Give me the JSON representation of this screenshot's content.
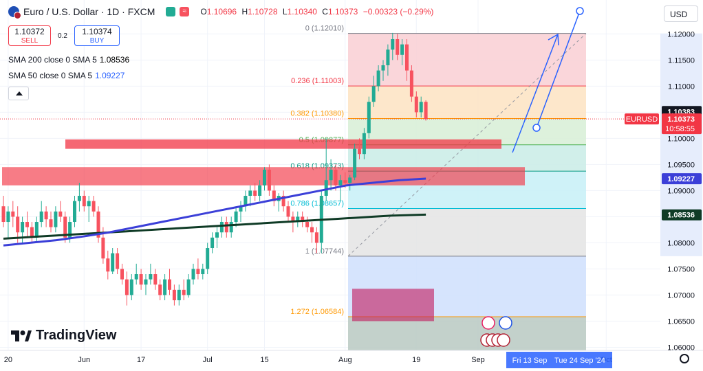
{
  "header": {
    "title": "Euro / U.S. Dollar · 1D · FXCM",
    "ohlc": [
      {
        "k": "O",
        "v": "1.10696"
      },
      {
        "k": "H",
        "v": "1.10728"
      },
      {
        "k": "L",
        "v": "1.10340"
      },
      {
        "k": "C",
        "v": "1.10373"
      },
      {
        "k": "",
        "v": "−0.00323 (−0.29%)"
      }
    ]
  },
  "trade": {
    "sell_price": "1.10372",
    "sell_label": "SELL",
    "spread": "0.2",
    "buy_price": "1.10374",
    "buy_label": "BUY"
  },
  "indicators": [
    {
      "label": "SMA 200 close 0 SMA 5",
      "value": "1.08536"
    },
    {
      "label": "SMA 50 close 0 SMA 5",
      "value": "1.09227"
    }
  ],
  "currency": "USD",
  "brand": "TradingView",
  "colors": {
    "up": "#22ab94",
    "down": "#f7525f",
    "sma200": "#0f3b26",
    "sma50": "#3b3fd8",
    "arrow": "#2962ff",
    "zone": "#f23645"
  },
  "chart_data": {
    "type": "candlestick",
    "symbol": "EURUSD",
    "ylim": [
      1.0594,
      1.1265
    ],
    "x_tick_labels": [
      {
        "i": 1,
        "label": "20"
      },
      {
        "i": 17,
        "label": "Jun"
      },
      {
        "i": 29,
        "label": "17"
      },
      {
        "i": 43,
        "label": "Jul"
      },
      {
        "i": 55,
        "label": "15"
      },
      {
        "i": 72,
        "label": "Aug"
      },
      {
        "i": 87,
        "label": "19"
      },
      {
        "i": 100,
        "label": "Sep"
      },
      {
        "i": 127,
        "label": "Oct"
      }
    ],
    "y_ticks": [
      1.06,
      1.065,
      1.07,
      1.075,
      1.08,
      1.085,
      1.09,
      1.095,
      1.1,
      1.105,
      1.11,
      1.115,
      1.12
    ],
    "y_tick_labels": [
      "1.06000",
      "1.06500",
      "1.07000",
      "1.07500",
      "1.08000",
      "1.08500",
      "1.09000",
      "1.09500",
      "1.10000",
      "1.10500",
      "1.11000",
      "1.11500",
      "1.12000"
    ],
    "price_labels": [
      {
        "text": "1.10383",
        "value": 1.10383,
        "bg": "#131722",
        "fg": "#ffffff"
      },
      {
        "text": "EURUSD",
        "value": 1.10373,
        "bg": "#f23645",
        "fg": "#ffffff",
        "side": "left"
      },
      {
        "text": "1.10373",
        "value": 1.10373,
        "bg": "#f23645",
        "fg": "#ffffff",
        "sub": "10:58:55"
      },
      {
        "text": "1.09227",
        "value": 1.09227,
        "bg": "#3b3fd8",
        "fg": "#ffffff"
      },
      {
        "text": "1.08536",
        "value": 1.08536,
        "bg": "#0f3b26",
        "fg": "#ffffff"
      }
    ],
    "date_badges": [
      "Fri 13 Sep",
      "Tue 24 Sep '24"
    ],
    "candles": [
      [
        1.087,
        1.089,
        1.083,
        1.084
      ],
      [
        1.084,
        1.087,
        1.081,
        1.086
      ],
      [
        1.086,
        1.088,
        1.083,
        1.085
      ],
      [
        1.085,
        1.087,
        1.08,
        1.082
      ],
      [
        1.082,
        1.085,
        1.08,
        1.084
      ],
      [
        1.084,
        1.086,
        1.081,
        1.083
      ],
      [
        1.083,
        1.084,
        1.08,
        1.081
      ],
      [
        1.081,
        1.085,
        1.08,
        1.084
      ],
      [
        1.084,
        1.088,
        1.083,
        1.086
      ],
      [
        1.086,
        1.087,
        1.083,
        1.0845
      ],
      [
        1.0845,
        1.086,
        1.082,
        1.083
      ],
      [
        1.083,
        1.087,
        1.082,
        1.086
      ],
      [
        1.086,
        1.088,
        1.084,
        1.085
      ],
      [
        1.085,
        1.086,
        1.08,
        1.081
      ],
      [
        1.081,
        1.085,
        1.08,
        1.084
      ],
      [
        1.084,
        1.089,
        1.083,
        1.088
      ],
      [
        1.088,
        1.0915,
        1.086,
        1.089
      ],
      [
        1.089,
        1.09,
        1.086,
        1.087
      ],
      [
        1.087,
        1.089,
        1.084,
        1.088
      ],
      [
        1.088,
        1.089,
        1.085,
        1.086
      ],
      [
        1.086,
        1.087,
        1.08,
        1.081
      ],
      [
        1.081,
        1.083,
        1.076,
        1.077
      ],
      [
        1.077,
        1.0785,
        1.073,
        1.0745
      ],
      [
        1.0745,
        1.079,
        1.074,
        1.078
      ],
      [
        1.078,
        1.079,
        1.074,
        1.075
      ],
      [
        1.075,
        1.076,
        1.072,
        1.073
      ],
      [
        1.073,
        1.0745,
        1.068,
        1.07
      ],
      [
        1.07,
        1.074,
        1.069,
        1.073
      ],
      [
        1.073,
        1.076,
        1.072,
        1.074
      ],
      [
        1.074,
        1.075,
        1.071,
        1.072
      ],
      [
        1.072,
        1.074,
        1.07,
        1.073
      ],
      [
        1.073,
        1.076,
        1.072,
        1.074
      ],
      [
        1.074,
        1.075,
        1.071,
        1.072
      ],
      [
        1.072,
        1.073,
        1.069,
        1.07
      ],
      [
        1.07,
        1.074,
        1.069,
        1.073
      ],
      [
        1.073,
        1.075,
        1.07,
        1.071
      ],
      [
        1.071,
        1.072,
        1.068,
        1.069
      ],
      [
        1.069,
        1.072,
        1.068,
        1.071
      ],
      [
        1.071,
        1.073,
        1.069,
        1.07
      ],
      [
        1.07,
        1.074,
        1.0695,
        1.073
      ],
      [
        1.073,
        1.076,
        1.072,
        1.075
      ],
      [
        1.075,
        1.077,
        1.073,
        1.074
      ],
      [
        1.074,
        1.076,
        1.073,
        1.075
      ],
      [
        1.075,
        1.08,
        1.074,
        1.079
      ],
      [
        1.079,
        1.082,
        1.078,
        1.081
      ],
      [
        1.081,
        1.083,
        1.079,
        1.082
      ],
      [
        1.082,
        1.085,
        1.081,
        1.084
      ],
      [
        1.084,
        1.085,
        1.081,
        1.082
      ],
      [
        1.082,
        1.085,
        1.081,
        1.084
      ],
      [
        1.084,
        1.087,
        1.083,
        1.086
      ],
      [
        1.086,
        1.088,
        1.084,
        1.087
      ],
      [
        1.087,
        1.09,
        1.086,
        1.089
      ],
      [
        1.089,
        1.091,
        1.087,
        1.09
      ],
      [
        1.09,
        1.0915,
        1.088,
        1.089
      ],
      [
        1.089,
        1.092,
        1.088,
        1.091
      ],
      [
        1.091,
        1.0945,
        1.09,
        1.094
      ],
      [
        1.094,
        1.095,
        1.089,
        1.09
      ],
      [
        1.09,
        1.091,
        1.087,
        1.088
      ],
      [
        1.088,
        1.0895,
        1.086,
        1.089
      ],
      [
        1.089,
        1.09,
        1.086,
        1.087
      ],
      [
        1.087,
        1.088,
        1.084,
        1.085
      ],
      [
        1.085,
        1.086,
        1.082,
        1.084
      ],
      [
        1.084,
        1.086,
        1.083,
        1.085
      ],
      [
        1.085,
        1.086,
        1.083,
        1.084
      ],
      [
        1.084,
        1.085,
        1.082,
        1.083
      ],
      [
        1.083,
        1.084,
        1.08,
        1.082
      ],
      [
        1.082,
        1.083,
        1.078,
        1.08
      ],
      [
        1.08,
        1.09,
        1.078,
        1.089
      ],
      [
        1.089,
        1.1,
        1.088,
        1.092
      ],
      [
        1.092,
        1.096,
        1.09,
        1.094
      ],
      [
        1.094,
        1.095,
        1.09,
        1.091
      ],
      [
        1.091,
        1.093,
        1.088,
        1.092
      ],
      [
        1.092,
        1.0935,
        1.0905,
        1.0915
      ],
      [
        1.0915,
        1.093,
        1.09,
        1.0925
      ],
      [
        1.0925,
        1.099,
        1.092,
        1.098
      ],
      [
        1.098,
        1.1,
        1.096,
        1.097
      ],
      [
        1.097,
        1.102,
        1.096,
        1.101
      ],
      [
        1.101,
        1.108,
        1.1,
        1.107
      ],
      [
        1.107,
        1.112,
        1.106,
        1.11
      ],
      [
        1.11,
        1.114,
        1.109,
        1.113
      ],
      [
        1.113,
        1.115,
        1.111,
        1.114
      ],
      [
        1.114,
        1.118,
        1.112,
        1.117
      ],
      [
        1.117,
        1.1202,
        1.115,
        1.119
      ],
      [
        1.119,
        1.12,
        1.115,
        1.116
      ],
      [
        1.116,
        1.119,
        1.114,
        1.118
      ],
      [
        1.118,
        1.119,
        1.111,
        1.113
      ],
      [
        1.113,
        1.114,
        1.107,
        1.108
      ],
      [
        1.108,
        1.109,
        1.104,
        1.105
      ],
      [
        1.105,
        1.108,
        1.104,
        1.107
      ],
      [
        1.107,
        1.1073,
        1.1034,
        1.1037
      ]
    ],
    "series": [
      {
        "name": "SMA 200",
        "color": "#0f3b26",
        "values": [
          1.0808,
          1.081,
          1.0812,
          1.0814,
          1.0816,
          1.0818,
          1.082,
          1.0822,
          1.0824,
          1.0826,
          1.0828,
          1.083,
          1.0832,
          1.0834,
          1.0836,
          1.0838,
          1.084,
          1.0842,
          1.0844,
          1.0846,
          1.0848,
          1.085,
          1.0852,
          1.0853,
          1.0854
        ]
      },
      {
        "name": "SMA 50",
        "color": "#3b3fd8",
        "values": [
          1.0795,
          1.08,
          1.0805,
          1.0812,
          1.082,
          1.083,
          1.084,
          1.085,
          1.086,
          1.087,
          1.088,
          1.089,
          1.09,
          1.091,
          1.0915,
          1.092,
          1.0923
        ]
      }
    ],
    "fibonacci": [
      {
        "level": "0",
        "price": 1.1201,
        "label": "0 (1.12010)",
        "color": "#787b86"
      },
      {
        "level": "0.236",
        "price": 1.11003,
        "label": "0.236 (1.11003)",
        "color": "#f23645"
      },
      {
        "level": "0.382",
        "price": 1.1038,
        "label": "0.382 (1.10380)",
        "color": "#ff9800"
      },
      {
        "level": "0.5",
        "price": 1.09877,
        "label": "0.5 (1.09877)",
        "color": "#4caf50"
      },
      {
        "level": "0.618",
        "price": 1.09373,
        "label": "0.618 (1.09373)",
        "color": "#089981"
      },
      {
        "level": "0.786",
        "price": 1.08657,
        "label": "0.786 (1.08657)",
        "color": "#00bcd4"
      },
      {
        "level": "1",
        "price": 1.07744,
        "label": "1 (1.07744)",
        "color": "#787b86"
      },
      {
        "level": "1.272",
        "price": 1.06584,
        "label": "1.272 (1.06584)",
        "color": "#ff9800"
      }
    ],
    "zones": [
      {
        "from": 1.098,
        "to": 1.0998,
        "color": "#f23645"
      },
      {
        "from": 1.091,
        "to": 1.0945,
        "color": "#f23645"
      },
      {
        "from": 1.065,
        "to": 1.0712,
        "color": "#c2185b"
      }
    ]
  }
}
